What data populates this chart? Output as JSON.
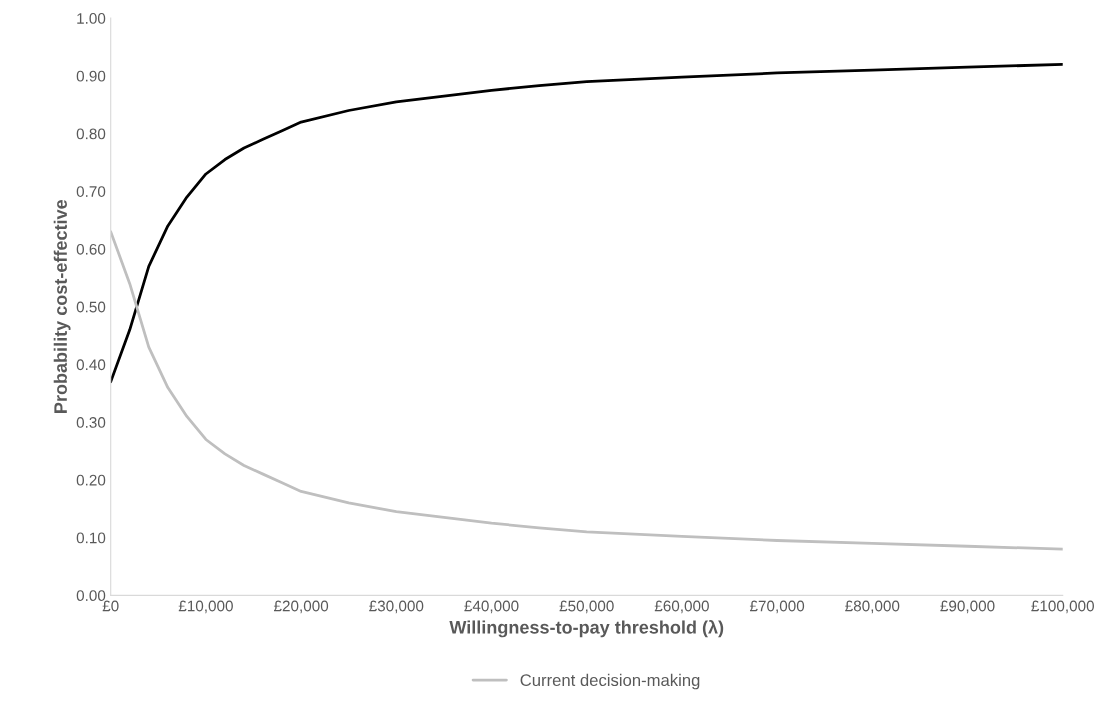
{
  "chart_data": {
    "type": "line",
    "xlabel": "Willingness-to-pay threshold (λ)",
    "ylabel": "Probability cost-effective",
    "x": [
      0,
      2000,
      4000,
      6000,
      8000,
      10000,
      12000,
      14000,
      16000,
      18000,
      20000,
      25000,
      30000,
      35000,
      40000,
      45000,
      50000,
      60000,
      70000,
      80000,
      90000,
      100000
    ],
    "series": [
      {
        "color": "#000000",
        "values": [
          0.37,
          0.46,
          0.57,
          0.64,
          0.69,
          0.73,
          0.755,
          0.775,
          0.79,
          0.805,
          0.82,
          0.84,
          0.855,
          0.865,
          0.875,
          0.883,
          0.89,
          0.898,
          0.905,
          0.91,
          0.915,
          0.92
        ]
      },
      {
        "name": "Current decision-making",
        "color": "#bfbfbf",
        "values": [
          0.63,
          0.54,
          0.43,
          0.36,
          0.31,
          0.27,
          0.245,
          0.225,
          0.21,
          0.195,
          0.18,
          0.16,
          0.145,
          0.135,
          0.125,
          0.117,
          0.11,
          0.102,
          0.095,
          0.09,
          0.085,
          0.08
        ]
      }
    ],
    "xlim": [
      0,
      100000
    ],
    "xticks": [
      {
        "value": 0,
        "label": "£0"
      },
      {
        "value": 10000,
        "label": "£10,000"
      },
      {
        "value": 20000,
        "label": "£20,000"
      },
      {
        "value": 30000,
        "label": "£30,000"
      },
      {
        "value": 40000,
        "label": "£40,000"
      },
      {
        "value": 50000,
        "label": "£50,000"
      },
      {
        "value": 60000,
        "label": "£60,000"
      },
      {
        "value": 70000,
        "label": "£70,000"
      },
      {
        "value": 80000,
        "label": "£80,000"
      },
      {
        "value": 90000,
        "label": "£90,000"
      },
      {
        "value": 100000,
        "label": "£100,000"
      }
    ],
    "ylim": [
      0,
      1
    ],
    "yticks": [
      {
        "value": 0,
        "label": "0.00"
      },
      {
        "value": 0.1,
        "label": "0.10"
      },
      {
        "value": 0.2,
        "label": "0.20"
      },
      {
        "value": 0.3,
        "label": "0.30"
      },
      {
        "value": 0.4,
        "label": "0.40"
      },
      {
        "value": 0.5,
        "label": "0.50"
      },
      {
        "value": 0.6,
        "label": "0.60"
      },
      {
        "value": 0.7,
        "label": "0.70"
      },
      {
        "value": 0.8,
        "label": "0.80"
      },
      {
        "value": 0.9,
        "label": "0.90"
      },
      {
        "value": 1,
        "label": "1.00"
      }
    ],
    "grid": false,
    "legend": "bottom",
    "marker": "none",
    "line_style": "solid"
  }
}
